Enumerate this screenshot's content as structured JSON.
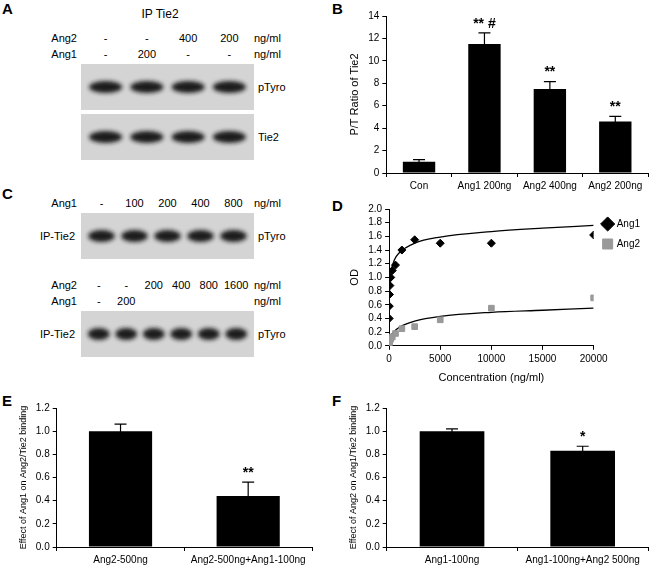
{
  "blots": [
    {
      "panel_label": "A",
      "title": "IP Tie2",
      "groups": [
        {
          "rows": [
            {
              "label": "Ang2",
              "values": [
                "-",
                "-",
                "400",
                "200"
              ],
              "unit": "ng/ml"
            },
            {
              "label": "Ang1",
              "values": [
                "-",
                "200",
                "-",
                "-"
              ],
              "unit": "ng/ml"
            }
          ],
          "bands": [
            "pTyro",
            "Tie2"
          ]
        }
      ]
    },
    {
      "panel_label": "C",
      "groups": [
        {
          "rows": [
            {
              "label": "Ang1",
              "values": [
                "-",
                "100",
                "200",
                "400",
                "800"
              ],
              "unit": "ng/ml"
            }
          ],
          "side_label": "IP-Tie2",
          "bands": [
            "pTyro"
          ]
        },
        {
          "rows": [
            {
              "label": "Ang2",
              "values": [
                "-",
                "-",
                "200",
                "400",
                "800",
                "1600"
              ],
              "unit": "ng/ml"
            },
            {
              "label": "Ang1",
              "values": [
                "-",
                "200",
                null,
                null,
                null,
                null
              ],
              "unit": "ng/ml"
            }
          ],
          "side_label": "IP-Tie2",
          "bands": [
            "pTyro"
          ]
        }
      ]
    }
  ],
  "chart_data": [
    {
      "panel_label": "B",
      "type": "bar",
      "ylabel": "P/T Ratio of Tie2",
      "categories": [
        "Con",
        "Ang1 200ng",
        "Ang2 400ng",
        "Ang2 200ng"
      ],
      "values": [
        1.0,
        11.5,
        7.5,
        4.6
      ],
      "errors": [
        0.2,
        1.0,
        0.65,
        0.45
      ],
      "annotations": [
        null,
        "** #",
        "**",
        "**"
      ],
      "color": "#000000",
      "ylim": [
        0,
        14
      ],
      "yticks": [
        0,
        2,
        4,
        6,
        8,
        10,
        12,
        14
      ],
      "grid": false
    },
    {
      "panel_label": "D",
      "type": "scatter",
      "ylabel": "OD",
      "xlabel": "Concentration (ng/ml)",
      "legend": "upper right",
      "series": [
        {
          "name": "Ang1",
          "color": "#000000",
          "marker": "diamond",
          "x": [
            10,
            20,
            40,
            80,
            160,
            310,
            625,
            1250,
            2500,
            5000,
            10000,
            20000
          ],
          "values": [
            0.4,
            0.58,
            0.75,
            0.88,
            1.0,
            1.1,
            1.18,
            1.4,
            1.55,
            1.5,
            1.5,
            1.62
          ],
          "fit": {
            "x": [
              10,
              50,
              100,
              200,
              500,
              1000,
              2500,
              5000,
              10000,
              15000,
              20000
            ],
            "values": [
              0.55,
              0.85,
              0.95,
              1.08,
              1.25,
              1.36,
              1.5,
              1.59,
              1.67,
              1.72,
              1.76
            ]
          }
        },
        {
          "name": "Ang2",
          "color": "#999999",
          "marker": "square",
          "x": [
            10,
            20,
            40,
            80,
            160,
            310,
            625,
            1250,
            2500,
            5000,
            10000,
            20000
          ],
          "values": [
            0.02,
            0.04,
            0.06,
            0.08,
            0.1,
            0.13,
            0.18,
            0.25,
            0.28,
            0.38,
            0.55,
            0.7
          ],
          "fit": {
            "x": [
              10,
              50,
              100,
              200,
              500,
              1000,
              2500,
              5000,
              10000,
              15000,
              20000
            ],
            "values": [
              0.02,
              0.07,
              0.1,
              0.15,
              0.21,
              0.27,
              0.36,
              0.43,
              0.49,
              0.52,
              0.55
            ]
          }
        }
      ],
      "xlim": [
        0,
        20000
      ],
      "xticks": [
        0,
        5000,
        10000,
        15000,
        20000
      ],
      "ylim": [
        0,
        2
      ],
      "yticks": [
        {
          "value": 0,
          "label": "0.0"
        },
        {
          "value": 0.2,
          "label": "0.2"
        },
        {
          "value": 0.4,
          "label": "0.4"
        },
        {
          "value": 0.6,
          "label": "0.6"
        },
        {
          "value": 0.8,
          "label": "0.8"
        },
        {
          "value": 1,
          "label": "1.0"
        },
        {
          "value": 1.2,
          "label": "1.2"
        },
        {
          "value": 1.4,
          "label": "1.4"
        },
        {
          "value": 1.6,
          "label": "1.6"
        },
        {
          "value": 1.8,
          "label": "1.8"
        },
        {
          "value": 2,
          "label": "2.0"
        }
      ],
      "grid": false
    },
    {
      "panel_label": "E",
      "type": "bar",
      "ylabel": "Effect of Ang1 on Ang2/Tie2 binding",
      "categories": [
        "Ang2-500ng",
        "Ang2-500ng+Ang1-100ng"
      ],
      "values": [
        1.0,
        0.44
      ],
      "errors": [
        0.06,
        0.12
      ],
      "annotations": [
        null,
        "**"
      ],
      "color": "#000000",
      "ylim": [
        0,
        1.2
      ],
      "yticks": [
        {
          "value": 0,
          "label": "0.0"
        },
        {
          "value": 0.2,
          "label": "0.2"
        },
        {
          "value": 0.4,
          "label": "0.4"
        },
        {
          "value": 0.6,
          "label": "0.6"
        },
        {
          "value": 0.8,
          "label": "0.8"
        },
        {
          "value": 1,
          "label": "1.0"
        },
        {
          "value": 1.2,
          "label": "1.2"
        }
      ],
      "grid": false
    },
    {
      "panel_label": "F",
      "type": "bar",
      "ylabel": "Effect of Ang2 on Ang1/Tie2 binding",
      "categories": [
        "Ang1-100ng",
        "Ang1-100ng+Ang2 500ng"
      ],
      "values": [
        1.0,
        0.83
      ],
      "errors": [
        0.02,
        0.04
      ],
      "annotations": [
        null,
        "*"
      ],
      "color": "#000000",
      "ylim": [
        0,
        1.2
      ],
      "yticks": [
        {
          "value": 0,
          "label": "0.0"
        },
        {
          "value": 0.2,
          "label": "0.2"
        },
        {
          "value": 0.4,
          "label": "0.4"
        },
        {
          "value": 0.6,
          "label": "0.6"
        },
        {
          "value": 0.8,
          "label": "0.8"
        },
        {
          "value": 1,
          "label": "1.0"
        },
        {
          "value": 1.2,
          "label": "1.2"
        }
      ],
      "grid": false
    }
  ]
}
